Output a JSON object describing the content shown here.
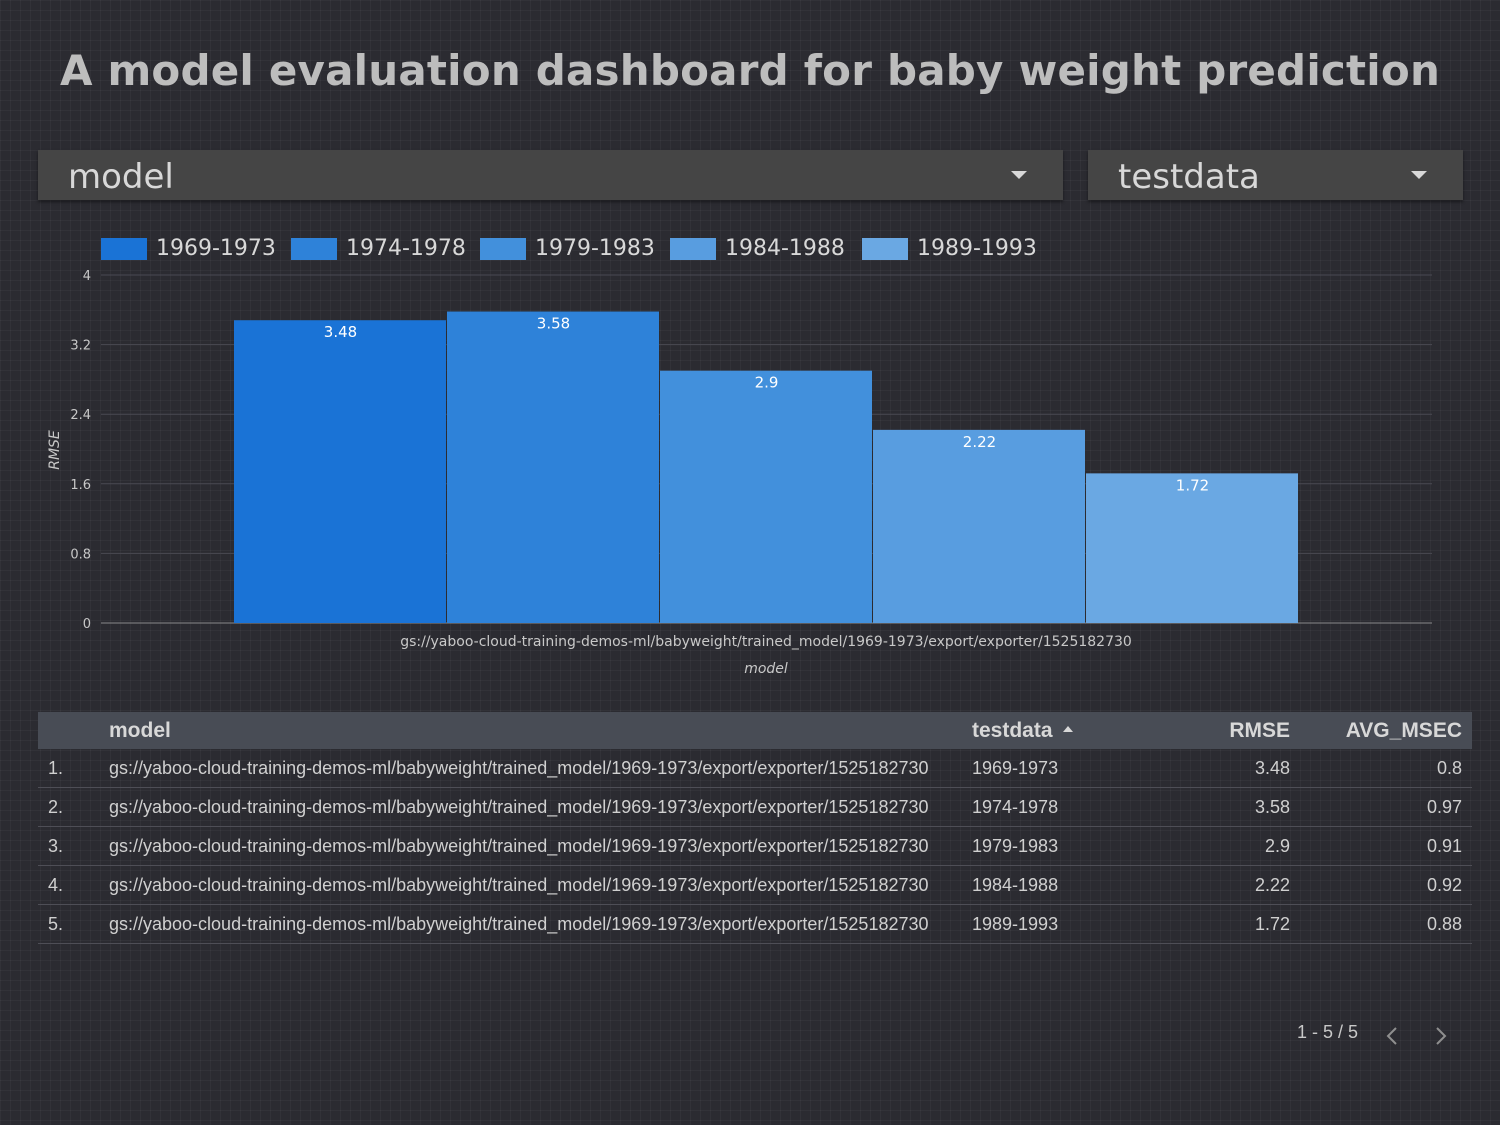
{
  "page": {
    "title": "A model evaluation dashboard for baby weight prediction"
  },
  "filters": {
    "model": {
      "label": "model",
      "icon": "caret-down-icon"
    },
    "testdata": {
      "label": "testdata",
      "icon": "caret-down-icon"
    }
  },
  "chart_data": {
    "type": "bar",
    "title": "",
    "xlabel": "model",
    "ylabel": "RMSE",
    "ylim": [
      0,
      4
    ],
    "yticks": [
      0,
      0.8,
      1.6,
      2.4,
      3.2,
      4
    ],
    "ytick_labels": [
      "0",
      "0.8",
      "1.6",
      "2.4",
      "3.2",
      "4"
    ],
    "grid": true,
    "legend_position": "top-left",
    "categories": [
      "gs://yaboo-cloud-training-demos-ml/babyweight/trained_model/1969-1973/export/exporter/1525182730"
    ],
    "series": [
      {
        "name": "1969-1973",
        "values": [
          3.48
        ],
        "label": "3.48",
        "color": "#1a73d6"
      },
      {
        "name": "1974-1978",
        "values": [
          3.58
        ],
        "label": "3.58",
        "color": "#2e82d9"
      },
      {
        "name": "1979-1983",
        "values": [
          2.9
        ],
        "label": "2.9",
        "color": "#4290dc"
      },
      {
        "name": "1984-1988",
        "values": [
          2.22
        ],
        "label": "2.22",
        "color": "#589de0"
      },
      {
        "name": "1989-1993",
        "values": [
          1.72
        ],
        "label": "1.72",
        "color": "#6aa8e3"
      }
    ]
  },
  "table": {
    "columns": [
      "",
      "model",
      "testdata",
      "RMSE",
      "AVG_MSEC"
    ],
    "sort_icon": "sort-ascending-icon",
    "rows": [
      {
        "index": "1.",
        "model": "gs://yaboo-cloud-training-demos-ml/babyweight/trained_model/1969-1973/export/exporter/1525182730",
        "testdata": "1969-1973",
        "rmse": "3.48",
        "avg_msec": "0.8"
      },
      {
        "index": "2.",
        "model": "gs://yaboo-cloud-training-demos-ml/babyweight/trained_model/1969-1973/export/exporter/1525182730",
        "testdata": "1974-1978",
        "rmse": "3.58",
        "avg_msec": "0.97"
      },
      {
        "index": "3.",
        "model": "gs://yaboo-cloud-training-demos-ml/babyweight/trained_model/1969-1973/export/exporter/1525182730",
        "testdata": "1979-1983",
        "rmse": "2.9",
        "avg_msec": "0.91"
      },
      {
        "index": "4.",
        "model": "gs://yaboo-cloud-training-demos-ml/babyweight/trained_model/1969-1973/export/exporter/1525182730",
        "testdata": "1984-1988",
        "rmse": "2.22",
        "avg_msec": "0.92"
      },
      {
        "index": "5.",
        "model": "gs://yaboo-cloud-training-demos-ml/babyweight/trained_model/1969-1973/export/exporter/1525182730",
        "testdata": "1989-1993",
        "rmse": "1.72",
        "avg_msec": "0.88"
      }
    ]
  },
  "pagination": {
    "text": "1 - 5 / 5",
    "prev_icon": "chevron-left-icon",
    "next_icon": "chevron-right-icon"
  },
  "colors": {
    "background": "#2b2b31",
    "title": "#bdbdbd",
    "dropdown": "#454545",
    "table_header": "#484c55"
  }
}
